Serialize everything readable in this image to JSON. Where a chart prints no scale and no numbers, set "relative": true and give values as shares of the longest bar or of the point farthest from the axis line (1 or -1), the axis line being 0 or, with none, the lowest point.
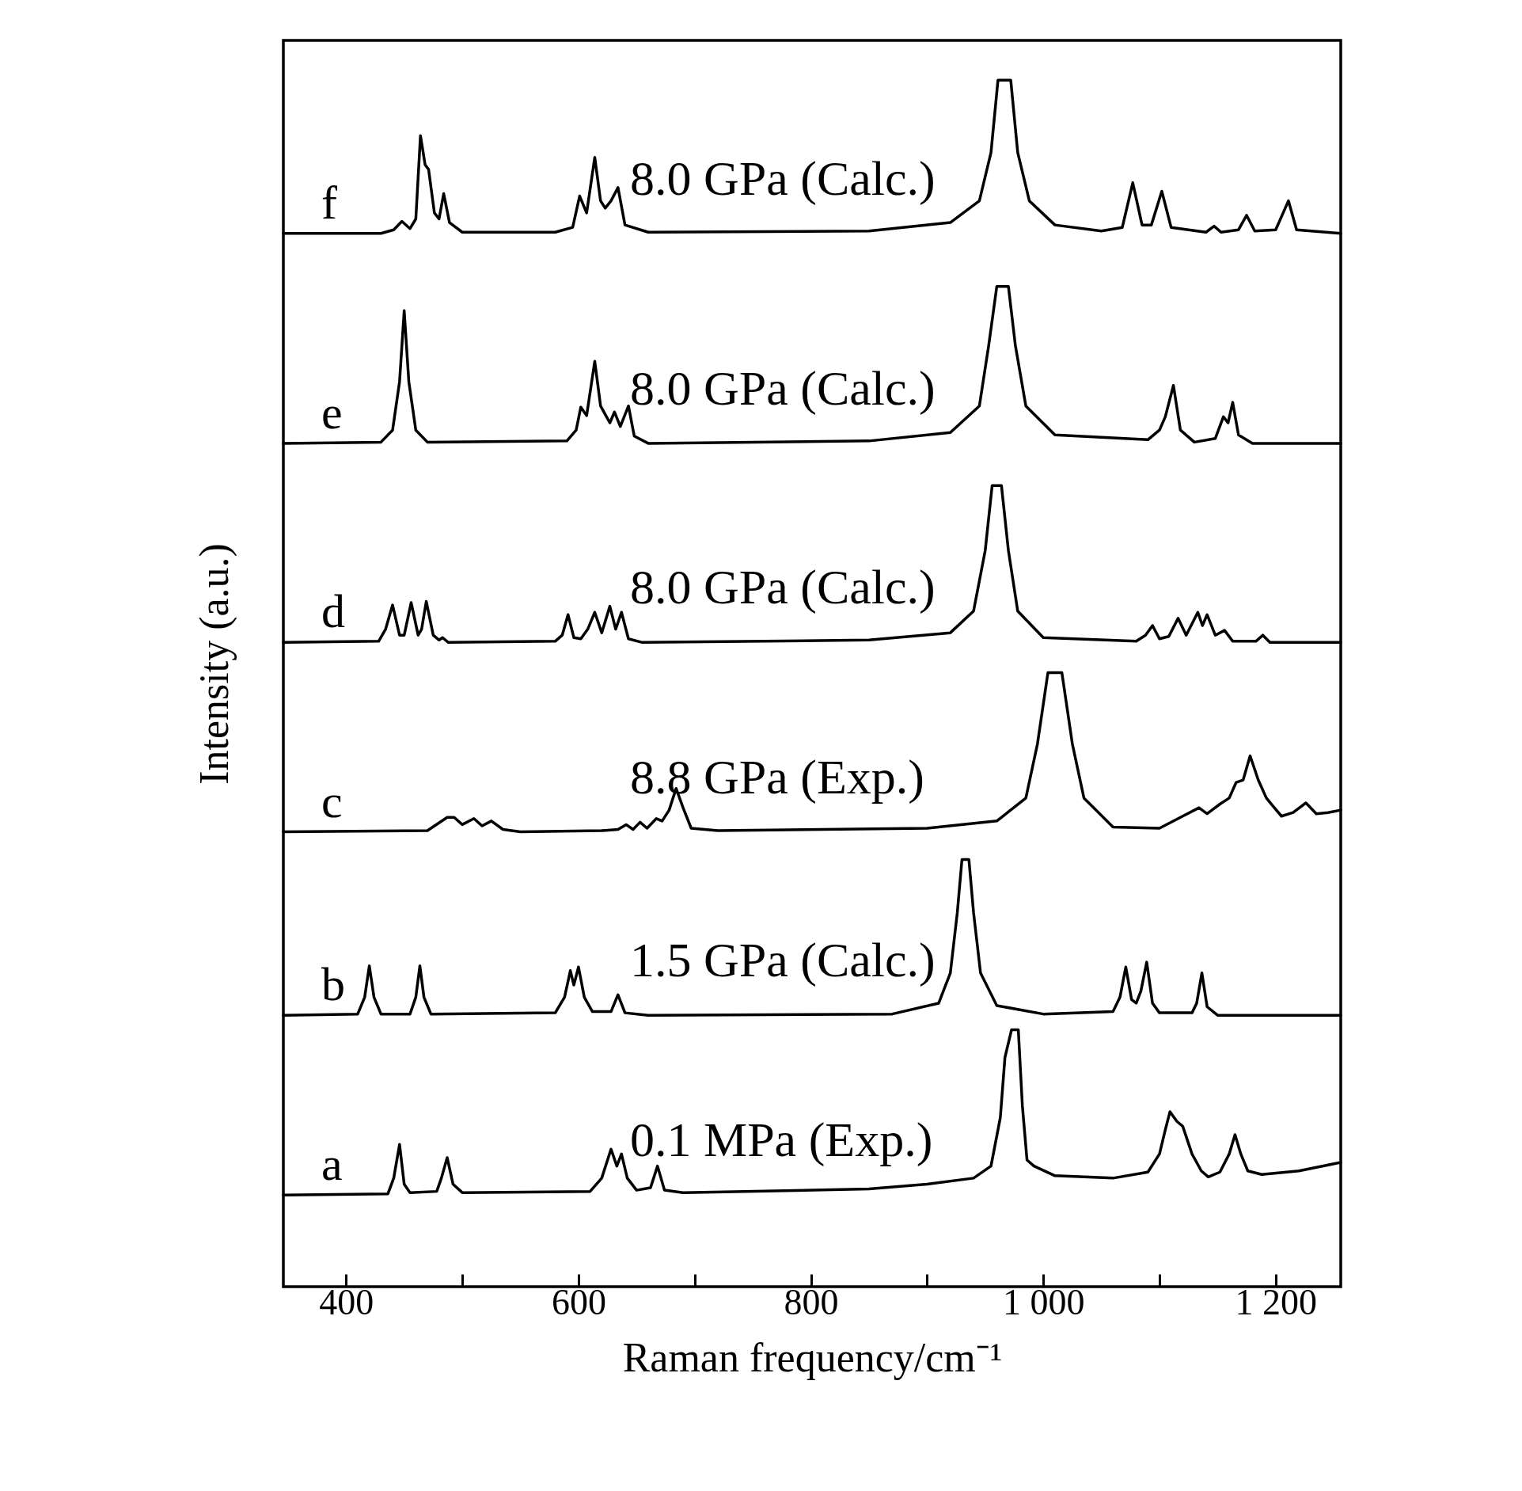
{
  "chart_data": {
    "type": "line",
    "relative": true,
    "xlabel": "Raman frequency/cm⁻¹",
    "ylabel": "Intensity (a.u.)",
    "xlim": [
      346,
      1256
    ],
    "xticks": [
      400,
      {
        "value": 500,
        "label": null
      },
      600,
      {
        "value": 700,
        "label": null
      },
      800,
      {
        "value": 900,
        "label": null
      },
      {
        "value": 1000,
        "label": "1 000"
      },
      {
        "value": 1100,
        "label": null
      },
      {
        "value": 1200,
        "label": "1 200"
      }
    ],
    "grid": false,
    "marker": "none",
    "line_style": "solid",
    "annotations": [
      "8.0 GPa (Calc.)",
      "8.0 GPa (Calc.)",
      "8.0 GPa (Calc.)",
      "8.8 GPa (Exp.)",
      "1.5 GPa (Calc.)",
      "0.1 MPa (Exp.)"
    ],
    "series": [
      {
        "name": "f",
        "color": "#000000",
        "x": [
          346,
          430,
          441,
          448,
          455,
          460,
          464,
          468,
          471,
          476,
          480,
          484,
          489,
          500,
          580,
          595,
          601,
          607,
          614,
          619,
          623,
          628,
          634,
          640,
          660,
          850,
          920,
          945,
          955,
          961,
          972,
          978,
          988,
          1010,
          1050,
          1068,
          1077,
          1085,
          1093,
          1102,
          1110,
          1140,
          1147,
          1153,
          1168,
          1175,
          1182,
          1200,
          1211,
          1218,
          1256
        ],
        "values": [
          0.873,
          0.873,
          0.876,
          0.883,
          0.877,
          0.885,
          0.954,
          0.93,
          0.926,
          0.89,
          0.885,
          0.906,
          0.882,
          0.874,
          0.874,
          0.878,
          0.904,
          0.89,
          0.936,
          0.9,
          0.894,
          0.9,
          0.911,
          0.88,
          0.874,
          0.875,
          0.882,
          0.9,
          0.94,
          1.0,
          1.0,
          0.94,
          0.9,
          0.88,
          0.875,
          0.878,
          0.915,
          0.88,
          0.88,
          0.908,
          0.878,
          0.874,
          0.879,
          0.874,
          0.876,
          0.888,
          0.875,
          0.876,
          0.9,
          0.876,
          0.873
        ]
      },
      {
        "name": "e",
        "color": "#000000",
        "x": [
          346,
          430,
          440,
          446,
          450,
          454,
          460,
          470,
          590,
          598,
          602,
          607,
          614,
          619,
          623,
          627,
          631,
          636,
          643,
          648,
          660,
          850,
          920,
          945,
          953,
          960,
          970,
          976,
          985,
          1010,
          1090,
          1100,
          1105,
          1112,
          1118,
          1130,
          1148,
          1155,
          1159,
          1163,
          1168,
          1180,
          1256
        ],
        "values": [
          0.699,
          0.7,
          0.71,
          0.75,
          0.809,
          0.75,
          0.71,
          0.7,
          0.701,
          0.71,
          0.729,
          0.722,
          0.767,
          0.73,
          0.723,
          0.716,
          0.725,
          0.713,
          0.73,
          0.705,
          0.699,
          0.701,
          0.708,
          0.73,
          0.78,
          0.829,
          0.829,
          0.78,
          0.73,
          0.706,
          0.702,
          0.71,
          0.721,
          0.747,
          0.71,
          0.7,
          0.703,
          0.721,
          0.716,
          0.733,
          0.706,
          0.699,
          0.699
        ]
      },
      {
        "name": "d",
        "color": "#000000",
        "x": [
          346,
          428,
          434,
          440,
          446,
          450,
          456,
          462,
          465,
          469,
          475,
          480,
          483,
          488,
          580,
          586,
          591,
          596,
          602,
          608,
          614,
          620,
          627,
          632,
          637,
          643,
          655,
          850,
          920,
          940,
          950,
          956,
          964,
          970,
          978,
          1000,
          1080,
          1088,
          1094,
          1100,
          1108,
          1116,
          1123,
          1133,
          1137,
          1141,
          1148,
          1156,
          1163,
          1183,
          1189,
          1195,
          1256
        ],
        "values": [
          0.534,
          0.535,
          0.545,
          0.565,
          0.54,
          0.54,
          0.567,
          0.54,
          0.545,
          0.568,
          0.54,
          0.536,
          0.538,
          0.534,
          0.535,
          0.54,
          0.557,
          0.538,
          0.537,
          0.545,
          0.559,
          0.542,
          0.564,
          0.545,
          0.559,
          0.537,
          0.534,
          0.536,
          0.542,
          0.56,
          0.61,
          0.664,
          0.664,
          0.61,
          0.56,
          0.538,
          0.535,
          0.54,
          0.548,
          0.537,
          0.539,
          0.554,
          0.54,
          0.559,
          0.548,
          0.557,
          0.54,
          0.544,
          0.535,
          0.535,
          0.54,
          0.534,
          0.534
        ]
      },
      {
        "name": "c",
        "color": "#000000",
        "x": [
          346,
          470,
          487,
          493,
          500,
          510,
          517,
          525,
          535,
          550,
          620,
          634,
          641,
          647,
          653,
          659,
          667,
          672,
          678,
          684,
          690,
          697,
          720,
          900,
          960,
          985,
          995,
          1004,
          1016,
          1025,
          1035,
          1060,
          1100,
          1120,
          1134,
          1141,
          1152,
          1160,
          1166,
          1172,
          1178,
          1185,
          1192,
          1198,
          1205,
          1215,
          1226,
          1235,
          1245,
          1256
        ],
        "values": [
          0.377,
          0.378,
          0.389,
          0.389,
          0.383,
          0.388,
          0.382,
          0.386,
          0.379,
          0.377,
          0.378,
          0.379,
          0.383,
          0.379,
          0.385,
          0.38,
          0.388,
          0.386,
          0.395,
          0.413,
          0.397,
          0.38,
          0.378,
          0.38,
          0.386,
          0.405,
          0.45,
          0.509,
          0.509,
          0.45,
          0.405,
          0.381,
          0.38,
          0.39,
          0.397,
          0.392,
          0.4,
          0.405,
          0.418,
          0.42,
          0.44,
          0.42,
          0.405,
          0.398,
          0.39,
          0.393,
          0.401,
          0.392,
          0.393,
          0.395
        ]
      },
      {
        "name": "b",
        "color": "#000000",
        "x": [
          346,
          410,
          416,
          420,
          424,
          430,
          455,
          460,
          463.5,
          467,
          473,
          580,
          588,
          593,
          596,
          600,
          605,
          612,
          628,
          634,
          640,
          660,
          870,
          910,
          920,
          926,
          930,
          936,
          940,
          946,
          960,
          1000,
          1060,
          1066,
          1071,
          1076,
          1080,
          1084,
          1089,
          1094,
          1100,
          1128,
          1132,
          1136.5,
          1141,
          1150,
          1256
        ],
        "values": [
          0.225,
          0.226,
          0.24,
          0.266,
          0.24,
          0.226,
          0.226,
          0.24,
          0.266,
          0.24,
          0.226,
          0.227,
          0.24,
          0.262,
          0.25,
          0.265,
          0.24,
          0.228,
          0.228,
          0.242,
          0.227,
          0.225,
          0.226,
          0.235,
          0.26,
          0.31,
          0.354,
          0.354,
          0.31,
          0.26,
          0.233,
          0.226,
          0.228,
          0.24,
          0.265,
          0.238,
          0.235,
          0.245,
          0.269,
          0.235,
          0.227,
          0.227,
          0.235,
          0.26,
          0.232,
          0.225,
          0.225
        ]
      },
      {
        "name": "a",
        "color": "#000000",
        "x": [
          346,
          436,
          441,
          446,
          450,
          455,
          478,
          482,
          487,
          492,
          500,
          610,
          620,
          628,
          633,
          637,
          642,
          650,
          662,
          668,
          674,
          690,
          850,
          900,
          940,
          955,
          963,
          967,
          972.7,
          978.5,
          982,
          986,
          992,
          1010,
          1060,
          1090,
          1100,
          1105,
          1109,
          1115,
          1120,
          1128,
          1136,
          1142,
          1152,
          1160,
          1165,
          1170,
          1176,
          1188,
          1220,
          1256
        ],
        "values": [
          0.076,
          0.077,
          0.09,
          0.118,
          0.085,
          0.078,
          0.079,
          0.09,
          0.107,
          0.085,
          0.078,
          0.079,
          0.09,
          0.114,
          0.1,
          0.11,
          0.09,
          0.08,
          0.082,
          0.1,
          0.08,
          0.078,
          0.081,
          0.085,
          0.09,
          0.1,
          0.14,
          0.19,
          0.213,
          0.213,
          0.15,
          0.105,
          0.1,
          0.092,
          0.09,
          0.095,
          0.11,
          0.13,
          0.145,
          0.137,
          0.133,
          0.11,
          0.096,
          0.091,
          0.095,
          0.11,
          0.126,
          0.11,
          0.096,
          0.093,
          0.096,
          0.103
        ]
      }
    ]
  }
}
